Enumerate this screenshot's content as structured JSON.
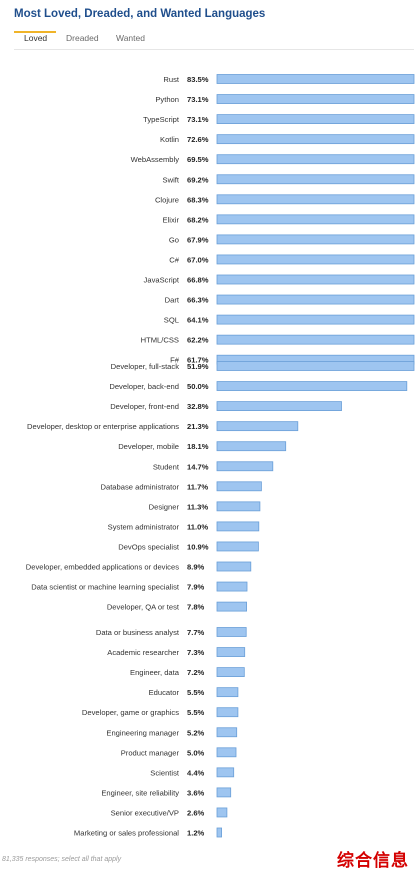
{
  "title": "Most Loved, Dreaded, and Wanted Languages",
  "tabs": [
    {
      "label": "Loved",
      "active": true
    },
    {
      "label": "Dreaded",
      "active": false
    },
    {
      "label": "Wanted",
      "active": false
    }
  ],
  "footnote": "81,335 responses; select all that apply",
  "watermark": "综合信息",
  "colors": {
    "bar_fill": "#9ec5f0",
    "bar_stroke": "#6a9fd8",
    "title": "#1f4e8c",
    "tab_accent": "#f0b429"
  },
  "chart_data": {
    "type": "bar",
    "orientation": "horizontal",
    "xlim": [
      0,
      51.9
    ],
    "grid": false,
    "groups": [
      {
        "series": [
          {
            "label": "Rust",
            "value": 83.5,
            "display": "83.5%"
          },
          {
            "label": "Python",
            "value": 73.1,
            "display": "73.1%"
          },
          {
            "label": "TypeScript",
            "value": 73.1,
            "display": "73.1%"
          },
          {
            "label": "Kotlin",
            "value": 72.6,
            "display": "72.6%"
          },
          {
            "label": "WebAssembly",
            "value": 69.5,
            "display": "69.5%"
          },
          {
            "label": "Swift",
            "value": 69.2,
            "display": "69.2%"
          },
          {
            "label": "Clojure",
            "value": 68.3,
            "display": "68.3%"
          },
          {
            "label": "Elixir",
            "value": 68.2,
            "display": "68.2%"
          },
          {
            "label": "Go",
            "value": 67.9,
            "display": "67.9%"
          },
          {
            "label": "C#",
            "value": 67.0,
            "display": "67.0%"
          },
          {
            "label": "JavaScript",
            "value": 66.8,
            "display": "66.8%"
          },
          {
            "label": "Dart",
            "value": 66.3,
            "display": "66.3%"
          },
          {
            "label": "SQL",
            "value": 64.1,
            "display": "64.1%"
          },
          {
            "label": "HTML/CSS",
            "value": 62.2,
            "display": "62.2%"
          },
          {
            "label": "F#",
            "value": 61.7,
            "display": "61.7%"
          }
        ]
      },
      {
        "series": [
          {
            "label": "Developer, full-stack",
            "value": 51.9,
            "display": "51.9%"
          },
          {
            "label": "Developer, back-end",
            "value": 50.0,
            "display": "50.0%"
          },
          {
            "label": "Developer, front-end",
            "value": 32.8,
            "display": "32.8%"
          },
          {
            "label": "Developer, desktop or enterprise applications",
            "value": 21.3,
            "display": "21.3%"
          },
          {
            "label": "Developer, mobile",
            "value": 18.1,
            "display": "18.1%"
          },
          {
            "label": "Student",
            "value": 14.7,
            "display": "14.7%"
          },
          {
            "label": "Database administrator",
            "value": 11.7,
            "display": "11.7%"
          },
          {
            "label": "Designer",
            "value": 11.3,
            "display": "11.3%"
          },
          {
            "label": "System administrator",
            "value": 11.0,
            "display": "11.0%"
          },
          {
            "label": "DevOps specialist",
            "value": 10.9,
            "display": "10.9%"
          },
          {
            "label": "Developer, embedded applications or devices",
            "value": 8.9,
            "display": "8.9%"
          },
          {
            "label": "Data scientist or machine learning specialist",
            "value": 7.9,
            "display": "7.9%"
          },
          {
            "label": "Developer, QA or test",
            "value": 7.8,
            "display": "7.8%"
          }
        ]
      },
      {
        "series": [
          {
            "label": "Data or business analyst",
            "value": 7.7,
            "display": "7.7%"
          },
          {
            "label": "Academic researcher",
            "value": 7.3,
            "display": "7.3%"
          },
          {
            "label": "Engineer, data",
            "value": 7.2,
            "display": "7.2%"
          },
          {
            "label": "Educator",
            "value": 5.5,
            "display": "5.5%"
          },
          {
            "label": "Developer, game or graphics",
            "value": 5.5,
            "display": "5.5%"
          },
          {
            "label": "Engineering manager",
            "value": 5.2,
            "display": "5.2%"
          },
          {
            "label": "Product manager",
            "value": 5.0,
            "display": "5.0%"
          },
          {
            "label": "Scientist",
            "value": 4.4,
            "display": "4.4%"
          },
          {
            "label": "Engineer, site reliability",
            "value": 3.6,
            "display": "3.6%"
          },
          {
            "label": "Senior executive/VP",
            "value": 2.6,
            "display": "2.6%"
          },
          {
            "label": "Marketing or sales professional",
            "value": 1.2,
            "display": "1.2%"
          }
        ]
      }
    ]
  }
}
